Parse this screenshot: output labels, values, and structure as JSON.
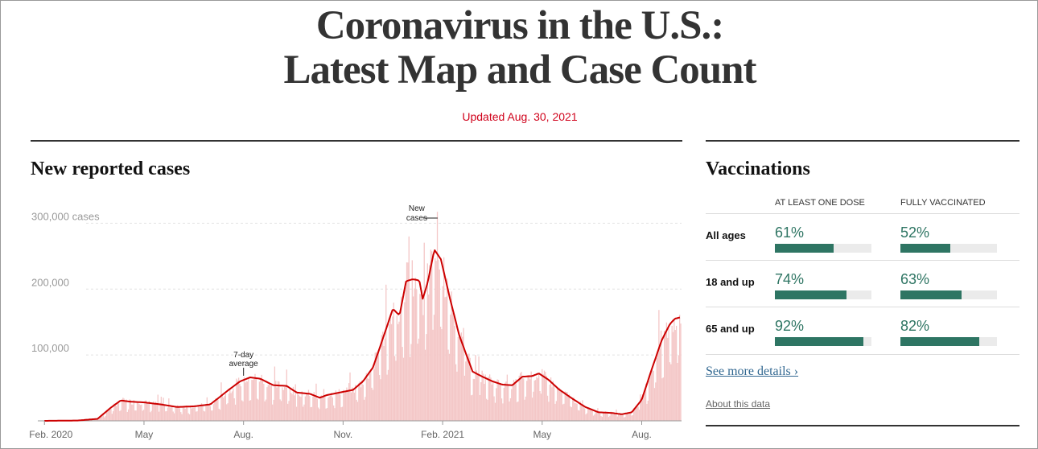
{
  "page": {
    "headline_line1": "Coronavirus in the U.S.:",
    "headline_line2": "Latest Map and Case Count",
    "updated": "Updated Aug. 30, 2021"
  },
  "cases_section": {
    "title": "New reported cases"
  },
  "chart_data": {
    "type": "bar",
    "title": "New reported cases",
    "y_tick_labels": [
      "300,000 cases",
      "200,000",
      "100,000"
    ],
    "y_ticks": [
      300000,
      200000,
      100000
    ],
    "ylim": [
      0,
      320000
    ],
    "x_tick_labels": [
      "Feb. 2020",
      "May",
      "Aug.",
      "Nov.",
      "Feb. 2021",
      "May",
      "Aug."
    ],
    "x_tick_positions_month": [
      0,
      3,
      6,
      9,
      12,
      15,
      18
    ],
    "x_range_months": [
      -0.2,
      19.2
    ],
    "series": [
      {
        "name": "7-day average",
        "type": "line",
        "color": "#cc0000",
        "points": [
          [
            0,
            0
          ],
          [
            1.0,
            500
          ],
          [
            1.6,
            3000
          ],
          [
            2.0,
            20000
          ],
          [
            2.3,
            31000
          ],
          [
            2.6,
            29000
          ],
          [
            3.0,
            28000
          ],
          [
            3.5,
            25000
          ],
          [
            4.0,
            21000
          ],
          [
            4.5,
            22000
          ],
          [
            5.0,
            25000
          ],
          [
            5.5,
            45000
          ],
          [
            5.9,
            60000
          ],
          [
            6.2,
            66000
          ],
          [
            6.5,
            64000
          ],
          [
            6.9,
            54000
          ],
          [
            7.3,
            53000
          ],
          [
            7.6,
            43000
          ],
          [
            8.0,
            41000
          ],
          [
            8.3,
            35000
          ],
          [
            8.5,
            39000
          ],
          [
            8.8,
            42000
          ],
          [
            9.0,
            44000
          ],
          [
            9.3,
            47000
          ],
          [
            9.6,
            60000
          ],
          [
            9.9,
            81000
          ],
          [
            10.2,
            125000
          ],
          [
            10.5,
            170000
          ],
          [
            10.7,
            160000
          ],
          [
            10.9,
            212000
          ],
          [
            11.1,
            215000
          ],
          [
            11.3,
            213000
          ],
          [
            11.4,
            185000
          ],
          [
            11.55,
            210000
          ],
          [
            11.75,
            260000
          ],
          [
            11.95,
            245000
          ],
          [
            12.2,
            190000
          ],
          [
            12.5,
            130000
          ],
          [
            12.9,
            75000
          ],
          [
            13.2,
            67000
          ],
          [
            13.5,
            60000
          ],
          [
            13.8,
            55000
          ],
          [
            14.1,
            54000
          ],
          [
            14.4,
            67000
          ],
          [
            14.7,
            68000
          ],
          [
            14.9,
            72000
          ],
          [
            15.2,
            62000
          ],
          [
            15.5,
            48000
          ],
          [
            15.9,
            34000
          ],
          [
            16.3,
            21000
          ],
          [
            16.7,
            13000
          ],
          [
            17.1,
            12000
          ],
          [
            17.4,
            10000
          ],
          [
            17.7,
            13000
          ],
          [
            18.0,
            32000
          ],
          [
            18.3,
            78000
          ],
          [
            18.6,
            122000
          ],
          [
            18.85,
            147000
          ],
          [
            19.0,
            155000
          ],
          [
            19.15,
            157000
          ]
        ]
      },
      {
        "name": "New cases",
        "type": "bar",
        "color": "#f4c7c7"
      }
    ],
    "annotations": [
      {
        "label_line1": "7-day",
        "label_line2": "average",
        "x_month": 6.0,
        "y": 66000
      },
      {
        "label_line1": "New",
        "label_line2": "cases",
        "x_month": 11.85,
        "y": 298000
      }
    ]
  },
  "vaccinations": {
    "title": "Vaccinations",
    "col1": "AT LEAST ONE DOSE",
    "col2": "FULLY VACCINATED",
    "rows": [
      {
        "label": "All ages",
        "one_dose": "61%",
        "one_dose_value": 61,
        "full": "52%",
        "full_value": 52
      },
      {
        "label": "18 and up",
        "one_dose": "74%",
        "one_dose_value": 74,
        "full": "63%",
        "full_value": 63
      },
      {
        "label": "65 and up",
        "one_dose": "92%",
        "one_dose_value": 92,
        "full": "82%",
        "full_value": 82
      }
    ],
    "details_link": "See more details ›",
    "about_link": "About this data"
  },
  "colors": {
    "accent_red": "#d0021b",
    "vax_green": "#2e7563",
    "link_blue": "#326891"
  }
}
